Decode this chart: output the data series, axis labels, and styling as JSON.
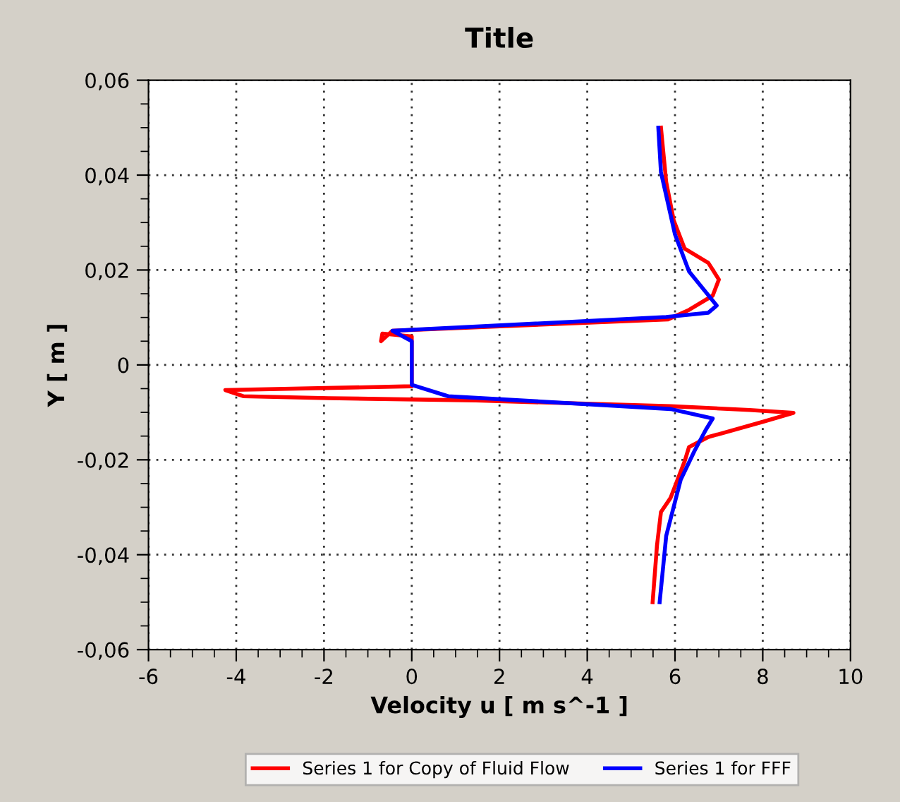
{
  "chart_data": {
    "type": "line",
    "title": "Title",
    "xlabel": "Velocity u [ m s^-1 ]",
    "ylabel": "Y [ m ]",
    "xlim": [
      -6,
      10
    ],
    "xticks": [
      -6,
      -4,
      -2,
      0,
      2,
      4,
      6,
      8,
      10
    ],
    "ylim": [
      -0.06,
      0.06
    ],
    "yticks": [
      {
        "value": -0.06,
        "label": "-0,06"
      },
      {
        "value": -0.04,
        "label": "-0,04"
      },
      {
        "value": -0.02,
        "label": "-0,02"
      },
      {
        "value": 0,
        "label": "0"
      },
      {
        "value": 0.02,
        "label": "0,02"
      },
      {
        "value": 0.04,
        "label": "0,04"
      },
      {
        "value": 0.06,
        "label": "0,06"
      }
    ],
    "grid": true,
    "legend": "bottom",
    "marker": "none",
    "line_style": "solid",
    "series": [
      {
        "name": "Series 1 for Copy of Fluid Flow",
        "color": "#ff0000",
        "x": [
          5.68,
          5.8,
          5.97,
          6.22,
          6.76,
          7.0,
          6.86,
          6.32,
          5.84,
          -0.44,
          -0.7,
          -0.67,
          0,
          0,
          -4.25,
          -3.84,
          -1.9,
          1.46,
          5.9,
          7.7,
          8.7,
          8.0,
          6.76,
          6.32,
          6.22,
          5.9,
          5.68,
          5.59,
          5.49
        ],
        "values": [
          0.05,
          0.0385,
          0.0305,
          0.0245,
          0.0215,
          0.018,
          0.0146,
          0.0116,
          0.0096,
          0.0072,
          0.005,
          0.0066,
          0.006,
          -0.0045,
          -0.0053,
          -0.0066,
          -0.007,
          -0.0075,
          -0.0087,
          -0.0095,
          -0.0101,
          -0.012,
          -0.0152,
          -0.0173,
          -0.0203,
          -0.028,
          -0.031,
          -0.038,
          -0.05
        ]
      },
      {
        "name": "Series 1 for FFF",
        "color": "#0000ff",
        "x": [
          5.62,
          5.68,
          6.0,
          6.32,
          6.95,
          6.76,
          5.8,
          -0.44,
          0,
          0,
          0.83,
          5.9,
          6.86,
          6.7,
          6.44,
          6.13,
          5.8,
          5.65
        ],
        "values": [
          0.05,
          0.0406,
          0.0275,
          0.0197,
          0.0125,
          0.011,
          0.0101,
          0.0072,
          0.005,
          -0.0042,
          -0.0066,
          -0.0093,
          -0.0113,
          -0.0137,
          -0.0182,
          -0.0242,
          -0.036,
          -0.05
        ]
      }
    ]
  }
}
